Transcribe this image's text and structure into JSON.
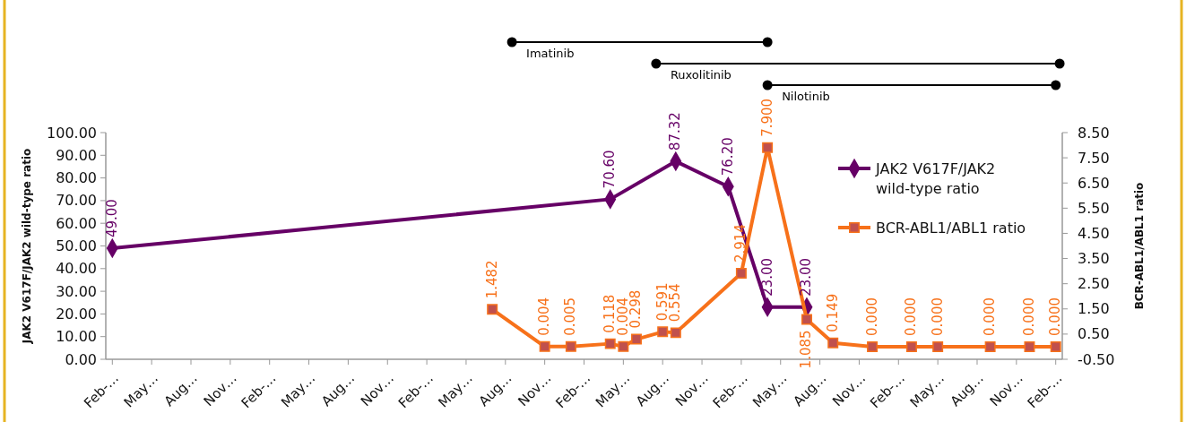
{
  "chart_data": {
    "type": "line",
    "ylabel": "JAK2 V617F/JAK2 wild-type ratio",
    "y2label": "BCR-ABL1/ABL1 ratio",
    "categories": [
      "Feb-…",
      null,
      null,
      "May…",
      null,
      null,
      "Aug…",
      null,
      null,
      "Nov…",
      null,
      null,
      "Feb-…",
      null,
      null,
      "May…",
      null,
      null,
      "Aug…",
      null,
      null,
      "Nov…",
      null,
      null,
      "Feb-…",
      null,
      null,
      "May…",
      null,
      null,
      "Aug…",
      null,
      null,
      "Nov…",
      null,
      null,
      "Feb-…",
      null,
      null,
      "May…",
      null,
      null,
      "Aug…",
      null,
      null,
      "Nov…",
      null,
      null,
      "Feb-…",
      null,
      null,
      "May…",
      null,
      null,
      "Aug…",
      null,
      null,
      "Nov…",
      null,
      null,
      "Feb-…",
      null,
      null,
      "May…",
      null,
      null,
      "Aug…",
      null,
      null,
      "Nov…",
      null,
      null,
      "Feb-…"
    ],
    "ylim": [
      0,
      100
    ],
    "yticks": [
      {
        "value": 0,
        "label": "0.00"
      },
      {
        "value": 10,
        "label": "10.00"
      },
      {
        "value": 20,
        "label": "20.00"
      },
      {
        "value": 30,
        "label": "30.00"
      },
      {
        "value": 40,
        "label": "40.00"
      },
      {
        "value": 50,
        "label": "50.00"
      },
      {
        "value": 60,
        "label": "60.00"
      },
      {
        "value": 70,
        "label": "70.00"
      },
      {
        "value": 80,
        "label": "80.00"
      },
      {
        "value": 90,
        "label": "90.00"
      },
      {
        "value": 100,
        "label": "100.00"
      }
    ],
    "y2lim": [
      -0.5,
      8.5
    ],
    "y2ticks": [
      {
        "value": -0.5,
        "label": "-0.50"
      },
      {
        "value": 0.5,
        "label": "0.50"
      },
      {
        "value": 1.5,
        "label": "1.50"
      },
      {
        "value": 2.5,
        "label": "2.50"
      },
      {
        "value": 3.5,
        "label": "3.50"
      },
      {
        "value": 4.5,
        "label": "4.50"
      },
      {
        "value": 5.5,
        "label": "5.50"
      },
      {
        "value": 6.5,
        "label": "6.50"
      },
      {
        "value": 7.5,
        "label": "7.50"
      },
      {
        "value": 8.5,
        "label": "8.50"
      }
    ],
    "legend": "right",
    "annotations": [
      "Imatinib",
      "Ruxolitinib",
      "Nilotinib"
    ],
    "series": [
      {
        "name": "JAK2 V617F/JAK2 wild-type ratio",
        "color": "#660066",
        "marker": "diamond",
        "values": [
          49,
          null,
          null,
          null,
          null,
          null,
          null,
          null,
          null,
          null,
          null,
          null,
          null,
          null,
          null,
          null,
          null,
          null,
          null,
          null,
          null,
          null,
          null,
          null,
          null,
          null,
          null,
          null,
          null,
          null,
          null,
          null,
          null,
          null,
          null,
          null,
          null,
          null,
          70.6,
          null,
          null,
          null,
          null,
          87.32,
          null,
          null,
          null,
          76.2,
          null,
          null,
          23,
          null,
          null,
          23,
          null,
          null,
          null,
          null,
          null,
          null,
          null,
          null,
          null,
          null,
          null,
          null,
          null,
          null,
          null,
          null,
          null,
          null,
          null
        ],
        "value_labels": [
          "49.00",
          null,
          null,
          null,
          null,
          null,
          null,
          null,
          null,
          null,
          null,
          null,
          null,
          null,
          null,
          null,
          null,
          null,
          null,
          null,
          null,
          null,
          null,
          null,
          null,
          null,
          null,
          null,
          null,
          null,
          null,
          null,
          null,
          null,
          null,
          null,
          null,
          null,
          "70.60",
          null,
          null,
          null,
          null,
          "87.32",
          null,
          null,
          null,
          "76.20",
          null,
          null,
          "23.00",
          null,
          null,
          "23.00",
          null,
          null,
          null,
          null,
          null,
          null,
          null,
          null,
          null,
          null,
          null,
          null,
          null,
          null,
          null,
          null,
          null,
          null,
          null
        ]
      },
      {
        "name": "BCR-ABL1/ABL1 ratio",
        "color": "#f7711a",
        "marker": "square",
        "axis": "y2",
        "values": [
          null,
          null,
          null,
          null,
          null,
          null,
          null,
          null,
          null,
          null,
          null,
          null,
          null,
          null,
          null,
          null,
          null,
          null,
          null,
          null,
          null,
          null,
          null,
          null,
          null,
          null,
          null,
          null,
          null,
          1.482,
          null,
          null,
          null,
          0.004,
          null,
          0.005,
          null,
          null,
          0.118,
          0.004,
          0.298,
          null,
          0.591,
          0.554,
          null,
          null,
          null,
          null,
          2.914,
          null,
          7.9,
          null,
          null,
          1.085,
          null,
          0.149,
          null,
          null,
          0,
          null,
          null,
          0,
          null,
          0,
          null,
          null,
          null,
          0,
          null,
          null,
          0,
          null,
          0
        ],
        "value_labels": [
          null,
          null,
          null,
          null,
          null,
          null,
          null,
          null,
          null,
          null,
          null,
          null,
          null,
          null,
          null,
          null,
          null,
          null,
          null,
          null,
          null,
          null,
          null,
          null,
          null,
          null,
          null,
          null,
          null,
          "1.482",
          null,
          null,
          null,
          "0.004",
          null,
          "0.005",
          null,
          null,
          "0.118",
          "0.004",
          "0.298",
          null,
          "0.591",
          "0.554",
          null,
          null,
          null,
          null,
          "2.914",
          null,
          "7.900",
          null,
          null,
          "1.085",
          null,
          "0.149",
          null,
          null,
          "0.000",
          null,
          null,
          "0.000",
          null,
          "0.000",
          null,
          null,
          null,
          "0.000",
          null,
          null,
          "0.000",
          null,
          "0.000"
        ]
      }
    ]
  }
}
